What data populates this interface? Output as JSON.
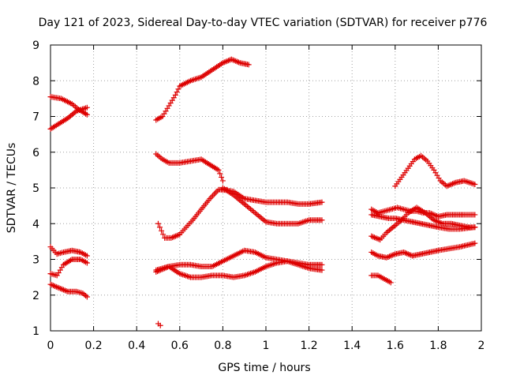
{
  "chart_data": {
    "type": "scatter",
    "title": "Day 121 of 2023, Sidereal Day-to-day VTEC variation (SDTVAR) for receiver p776",
    "xlabel": "GPS time / hours",
    "ylabel": "SDTVAR / TECUs",
    "xlim": [
      0,
      2
    ],
    "ylim": [
      1,
      9
    ],
    "xticks": [
      0,
      0.2,
      0.4,
      0.6,
      0.8,
      1,
      1.2,
      1.4,
      1.6,
      1.8,
      2
    ],
    "xtick_labels": [
      "0",
      "0.2",
      "0.4",
      "0.6",
      "0.8",
      "1",
      "1.2",
      "1.4",
      "1.6",
      "1.8",
      "2"
    ],
    "yticks": [
      1,
      2,
      3,
      4,
      5,
      6,
      7,
      8,
      9
    ],
    "ytick_labels": [
      "1",
      "2",
      "3",
      "4",
      "5",
      "6",
      "7",
      "8",
      "9"
    ],
    "grid": true,
    "marker": "plus",
    "color": "#dd0000",
    "series": [
      {
        "name": "s1",
        "x": [
          0.0,
          0.05,
          0.1,
          0.13,
          0.17
        ],
        "y": [
          7.55,
          7.5,
          7.35,
          7.2,
          7.05
        ]
      },
      {
        "name": "s2",
        "x": [
          0.0,
          0.04,
          0.08,
          0.12,
          0.17
        ],
        "y": [
          6.65,
          6.8,
          6.95,
          7.15,
          7.25
        ]
      },
      {
        "name": "s3",
        "x": [
          0.0,
          0.03,
          0.06,
          0.1,
          0.14,
          0.17
        ],
        "y": [
          3.35,
          3.15,
          3.2,
          3.25,
          3.2,
          3.1
        ]
      },
      {
        "name": "s4",
        "x": [
          0.0,
          0.03,
          0.06,
          0.1,
          0.14,
          0.17
        ],
        "y": [
          2.6,
          2.55,
          2.85,
          3.0,
          3.0,
          2.9
        ]
      },
      {
        "name": "s5",
        "x": [
          0.0,
          0.04,
          0.08,
          0.12,
          0.15,
          0.17
        ],
        "y": [
          2.3,
          2.2,
          2.1,
          2.1,
          2.05,
          1.95
        ]
      },
      {
        "name": "s6",
        "x": [
          0.49,
          0.52,
          0.55,
          0.58,
          0.6,
          0.65,
          0.7,
          0.75,
          0.8,
          0.84,
          0.88,
          0.92
        ],
        "y": [
          6.9,
          7.0,
          7.3,
          7.6,
          7.85,
          8.0,
          8.1,
          8.3,
          8.5,
          8.6,
          8.5,
          8.45
        ]
      },
      {
        "name": "s7",
        "x": [
          0.49,
          0.52,
          0.55,
          0.6,
          0.65,
          0.7,
          0.74,
          0.78,
          0.8
        ],
        "y": [
          5.95,
          5.8,
          5.7,
          5.7,
          5.75,
          5.8,
          5.65,
          5.5,
          5.2
        ]
      },
      {
        "name": "s8",
        "x": [
          0.5,
          0.53,
          0.56,
          0.6,
          0.63,
          0.66,
          0.7,
          0.74,
          0.78,
          0.82
        ],
        "y": [
          4.0,
          3.6,
          3.6,
          3.7,
          3.9,
          4.1,
          4.4,
          4.7,
          4.95,
          4.95
        ]
      },
      {
        "name": "s9",
        "x": [
          0.8,
          0.85,
          0.9,
          0.95,
          1.0,
          1.05,
          1.1,
          1.15,
          1.2,
          1.26
        ],
        "y": [
          4.95,
          4.9,
          4.7,
          4.65,
          4.6,
          4.6,
          4.6,
          4.55,
          4.55,
          4.6
        ]
      },
      {
        "name": "s10",
        "x": [
          0.8,
          0.85,
          0.9,
          0.95,
          1.0,
          1.05,
          1.1,
          1.15,
          1.2,
          1.26
        ],
        "y": [
          5.0,
          4.8,
          4.55,
          4.3,
          4.05,
          4.0,
          4.0,
          4.0,
          4.1,
          4.1
        ]
      },
      {
        "name": "s11",
        "x": [
          0.49,
          0.55,
          0.6,
          0.65,
          0.7,
          0.75,
          0.8,
          0.85,
          0.9,
          0.95,
          1.0,
          1.05,
          1.1,
          1.15,
          1.2,
          1.26
        ],
        "y": [
          2.7,
          2.8,
          2.85,
          2.85,
          2.8,
          2.8,
          2.95,
          3.1,
          3.25,
          3.2,
          3.05,
          3.0,
          2.95,
          2.9,
          2.85,
          2.85
        ]
      },
      {
        "name": "s12",
        "x": [
          0.49,
          0.55,
          0.6,
          0.65,
          0.7,
          0.75,
          0.8,
          0.85,
          0.9,
          0.95,
          1.0,
          1.05,
          1.1,
          1.15,
          1.2,
          1.26
        ],
        "y": [
          2.65,
          2.8,
          2.6,
          2.5,
          2.5,
          2.55,
          2.55,
          2.5,
          2.55,
          2.65,
          2.8,
          2.9,
          2.95,
          2.85,
          2.75,
          2.7
        ]
      },
      {
        "name": "s13",
        "x": [
          0.5,
          0.51
        ],
        "y": [
          1.2,
          1.15
        ]
      },
      {
        "name": "s14",
        "x": [
          1.49,
          1.52,
          1.55,
          1.58,
          1.61,
          1.64,
          1.67,
          1.7,
          1.73,
          1.76,
          1.8,
          1.84,
          1.88,
          1.92,
          1.97
        ],
        "y": [
          4.4,
          4.3,
          4.35,
          4.4,
          4.45,
          4.4,
          4.35,
          4.35,
          4.3,
          4.3,
          4.2,
          4.25,
          4.25,
          4.25,
          4.25
        ]
      },
      {
        "name": "s15",
        "x": [
          1.49,
          1.53,
          1.56,
          1.6,
          1.63,
          1.66,
          1.7,
          1.74,
          1.78,
          1.82,
          1.86,
          1.9,
          1.94,
          1.97
        ],
        "y": [
          3.65,
          3.55,
          3.75,
          3.95,
          4.1,
          4.3,
          4.45,
          4.3,
          4.1,
          4.0,
          4.0,
          3.95,
          3.9,
          3.9
        ]
      },
      {
        "name": "s16",
        "x": [
          1.49,
          1.53,
          1.57,
          1.6,
          1.64,
          1.68,
          1.72,
          1.76,
          1.8,
          1.85,
          1.9,
          1.97
        ],
        "y": [
          4.25,
          4.2,
          4.15,
          4.15,
          4.1,
          4.05,
          4.0,
          3.95,
          3.9,
          3.85,
          3.85,
          3.9
        ]
      },
      {
        "name": "s17",
        "x": [
          1.6,
          1.63,
          1.66,
          1.69,
          1.72,
          1.75,
          1.78,
          1.81,
          1.84,
          1.88,
          1.92,
          1.97
        ],
        "y": [
          5.05,
          5.3,
          5.55,
          5.8,
          5.9,
          5.75,
          5.5,
          5.2,
          5.05,
          5.15,
          5.2,
          5.1
        ]
      },
      {
        "name": "s18",
        "x": [
          1.49,
          1.52,
          1.56,
          1.6,
          1.64,
          1.68,
          1.72,
          1.76,
          1.8,
          1.85,
          1.9,
          1.97
        ],
        "y": [
          3.2,
          3.1,
          3.05,
          3.15,
          3.2,
          3.1,
          3.15,
          3.2,
          3.25,
          3.3,
          3.35,
          3.45
        ]
      },
      {
        "name": "s19",
        "x": [
          1.49,
          1.52,
          1.55,
          1.58
        ],
        "y": [
          2.55,
          2.55,
          2.45,
          2.35
        ]
      }
    ]
  }
}
